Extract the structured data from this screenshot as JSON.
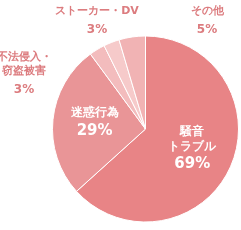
{
  "chart_data": {
    "type": "pie",
    "categories": [
      "騒音\nトラブル",
      "迷惑行為",
      "不法侵入・\n窃盗被害",
      "ストーカー・DV",
      "その他"
    ],
    "values": [
      69,
      29,
      3,
      3,
      5
    ],
    "value_labels": [
      "69%",
      "29%",
      "3%",
      "3%",
      "5%"
    ],
    "colors": [
      "#e88486",
      "#e99597",
      "#f3bcbd",
      "#f6caca",
      "#f1b3b4"
    ],
    "data_labels": true
  }
}
